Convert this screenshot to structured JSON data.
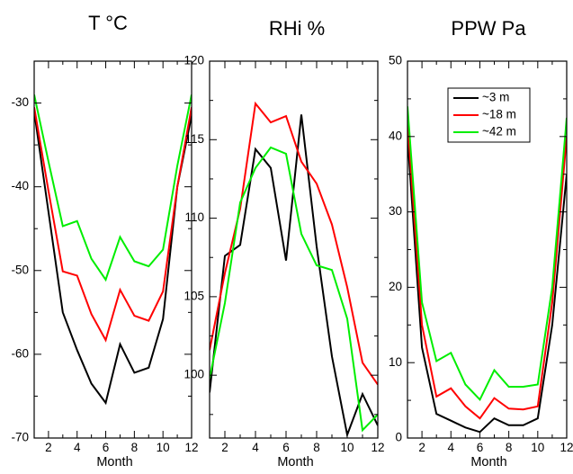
{
  "chart_data": [
    {
      "type": "line",
      "title": "T °C",
      "xlabel": "Month",
      "ylabel": "",
      "x": [
        1,
        2,
        3,
        4,
        5,
        6,
        7,
        8,
        9,
        10,
        11,
        12
      ],
      "xlim": [
        1,
        12
      ],
      "ylim": [
        -70,
        -25
      ],
      "xticks": [
        "2",
        "4",
        "6",
        "8",
        "10",
        "12"
      ],
      "yticks": [
        "-30",
        "-40",
        "-50",
        "-60",
        "-70"
      ],
      "grid": false,
      "series": [
        {
          "name": "~3 m",
          "color": "#000000",
          "values": [
            -31,
            -43,
            -55,
            -59.5,
            -63.5,
            -65.8,
            -58.8,
            -62.2,
            -61.6,
            -55.8,
            -40,
            -31.5
          ]
        },
        {
          "name": "~18 m",
          "color": "#ff0000",
          "values": [
            -30.5,
            -40.5,
            -50.1,
            -50.6,
            -55.2,
            -58.3,
            -52.3,
            -55.4,
            -56,
            -52.5,
            -40,
            -30.5
          ]
        },
        {
          "name": "~42 m",
          "color": "#00ee00",
          "values": [
            -29,
            -37,
            -44.7,
            -44.1,
            -48.6,
            -51.1,
            -46,
            -48.9,
            -49.5,
            -47.5,
            -37.5,
            -29
          ]
        }
      ]
    },
    {
      "type": "line",
      "title": "RHi %",
      "xlabel": "Month",
      "ylabel": "",
      "x": [
        1,
        2,
        3,
        4,
        5,
        6,
        7,
        8,
        9,
        10,
        11,
        12
      ],
      "xlim": [
        1,
        12
      ],
      "ylim": [
        96,
        120
      ],
      "xticks": [
        "2",
        "4",
        "6",
        "8",
        "10",
        "12"
      ],
      "yticks": [
        "100",
        "105",
        "110",
        "115",
        "120"
      ],
      "grid": false,
      "series": [
        {
          "name": "~3 m",
          "color": "#000000",
          "values": [
            98.9,
            107.6,
            108.3,
            114.4,
            113.2,
            107.3,
            116.6,
            108.2,
            101.2,
            96.2,
            98.8,
            96.8
          ]
        },
        {
          "name": "~18 m",
          "color": "#ff0000",
          "values": [
            101.6,
            106.5,
            110.6,
            117.3,
            116.1,
            116.5,
            113.6,
            112.2,
            109.6,
            105.6,
            100.8,
            99.4
          ]
        },
        {
          "name": "~42 m",
          "color": "#00ee00",
          "values": [
            99.8,
            104.6,
            111,
            113.2,
            114.5,
            114.1,
            109,
            107,
            106.7,
            103.6,
            96.5,
            97.5
          ]
        }
      ]
    },
    {
      "type": "line",
      "title": "PPW Pa",
      "xlabel": "Month",
      "ylabel": "",
      "x": [
        1,
        2,
        3,
        4,
        5,
        6,
        7,
        8,
        9,
        10,
        11,
        12
      ],
      "xlim": [
        1,
        12
      ],
      "ylim": [
        0,
        50
      ],
      "xticks": [
        "2",
        "4",
        "6",
        "8",
        "10",
        "12"
      ],
      "yticks": [
        "0",
        "10",
        "20",
        "30",
        "40",
        "50"
      ],
      "grid": false,
      "legend": "top-right",
      "series": [
        {
          "name": "~3 m",
          "color": "#000000",
          "values": [
            40,
            12,
            3.2,
            2.3,
            1.4,
            0.8,
            2.6,
            1.7,
            1.7,
            2.6,
            15,
            35
          ]
        },
        {
          "name": "~18 m",
          "color": "#ff0000",
          "values": [
            42,
            15,
            5.5,
            6.6,
            4.2,
            2.6,
            5.3,
            3.9,
            3.8,
            4.2,
            18,
            40
          ]
        },
        {
          "name": "~42 m",
          "color": "#00ee00",
          "values": [
            44,
            18,
            10.2,
            11.3,
            7.1,
            5.1,
            9,
            6.8,
            6.8,
            7.1,
            20,
            42.5
          ]
        }
      ]
    }
  ]
}
